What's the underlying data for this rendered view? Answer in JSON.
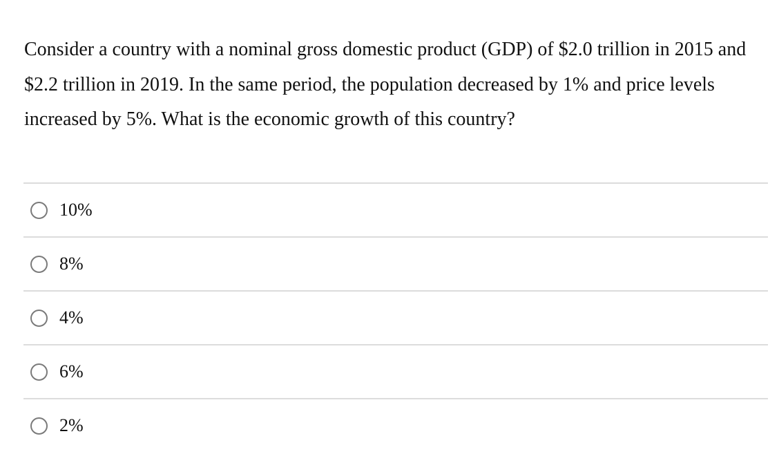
{
  "question": {
    "text": "Consider a country with a nominal gross domestic product (GDP) of $2.0 trillion in 2015 and $2.2 trillion in 2019. In the same period, the population decreased by 1% and price levels increased by 5%. What is the economic growth of this country?"
  },
  "options": [
    {
      "label": "10%"
    },
    {
      "label": "8%"
    },
    {
      "label": "4%"
    },
    {
      "label": "6%"
    },
    {
      "label": "2%"
    }
  ]
}
